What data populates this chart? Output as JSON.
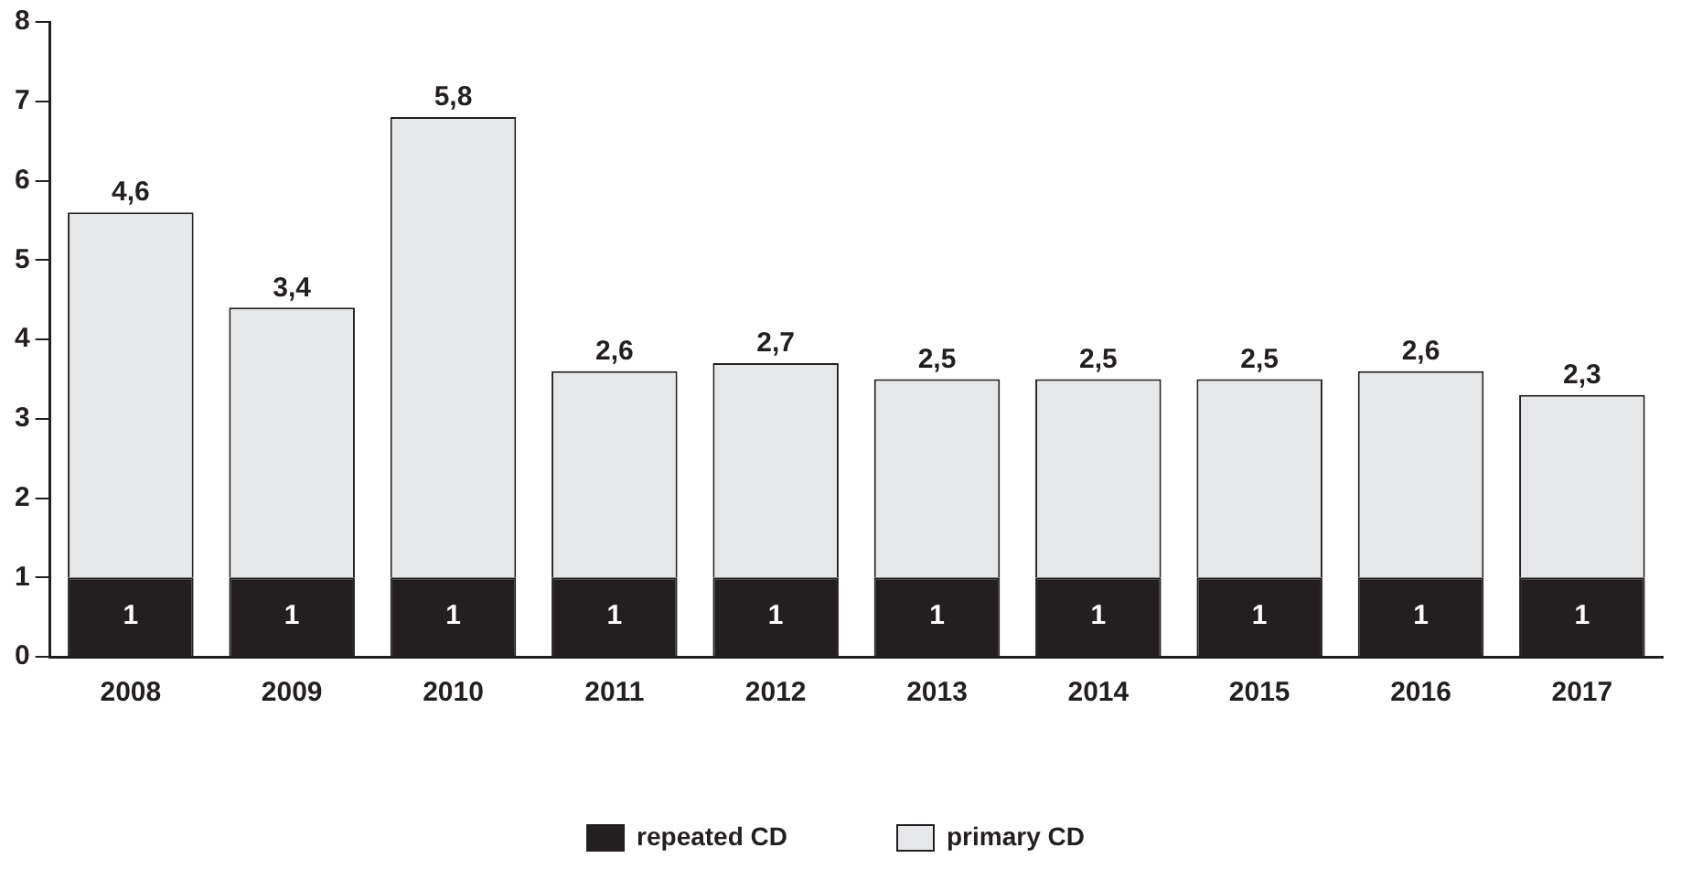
{
  "chart_data": {
    "type": "bar",
    "stacked": true,
    "categories": [
      "2008",
      "2009",
      "2010",
      "2011",
      "2012",
      "2013",
      "2014",
      "2015",
      "2016",
      "2017"
    ],
    "series": [
      {
        "name": "repeated CD",
        "color": "#231f20",
        "values": [
          1,
          1,
          1,
          1,
          1,
          1,
          1,
          1,
          1,
          1
        ],
        "value_labels": [
          "1",
          "1",
          "1",
          "1",
          "1",
          "1",
          "1",
          "1",
          "1",
          "1"
        ]
      },
      {
        "name": "primary CD",
        "color": "#e6e7e8",
        "values": [
          4.6,
          3.4,
          5.8,
          2.6,
          2.7,
          2.5,
          2.5,
          2.5,
          2.6,
          2.3
        ],
        "value_labels": [
          "4,6",
          "3,4",
          "5,8",
          "2,6",
          "2,7",
          "2,5",
          "2,5",
          "2,5",
          "2,6",
          "2,3"
        ]
      }
    ],
    "ylim": [
      0,
      8
    ],
    "yticks": [
      0,
      1,
      2,
      3,
      4,
      5,
      6,
      7,
      8
    ],
    "grid": false,
    "legend": "bottom"
  }
}
